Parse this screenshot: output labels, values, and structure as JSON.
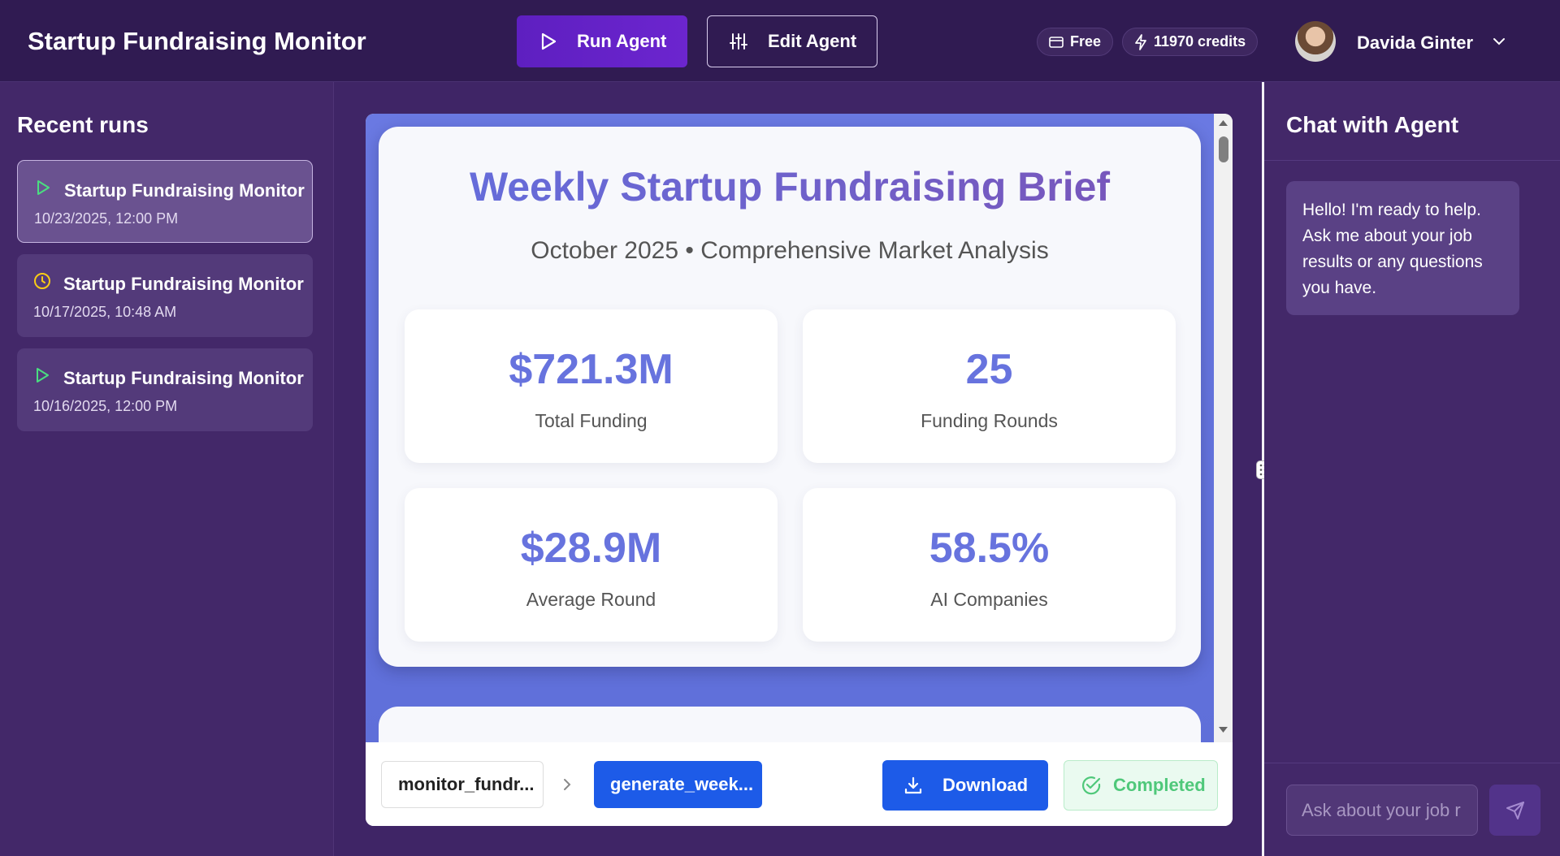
{
  "header": {
    "app_title": "Startup Fundraising Monitor",
    "run_label": "Run Agent",
    "edit_label": "Edit Agent",
    "plan_label": "Free",
    "credits_label": "11970 credits",
    "user_name": "Davida Ginter"
  },
  "sidebar": {
    "title": "Recent runs",
    "runs": [
      {
        "name": "Startup Fundraising Monitor",
        "date": "10/23/2025, 12:00 PM",
        "status_icon": "play-icon",
        "active": true
      },
      {
        "name": "Startup Fundraising Monitor",
        "date": "10/17/2025, 10:48 AM",
        "status_icon": "clock-icon",
        "active": false
      },
      {
        "name": "Startup Fundraising Monitor",
        "date": "10/16/2025, 12:00 PM",
        "status_icon": "play-icon",
        "active": false
      }
    ]
  },
  "report": {
    "title": "Weekly Startup Fundraising Brief",
    "subtitle": "October 2025 • Comprehensive Market Analysis",
    "stats": [
      {
        "value": "$721.3M",
        "label": "Total Funding"
      },
      {
        "value": "25",
        "label": "Funding Rounds"
      },
      {
        "value": "$28.9M",
        "label": "Average Round"
      },
      {
        "value": "58.5%",
        "label": "AI Companies"
      }
    ]
  },
  "footer": {
    "step1_label": "monitor_fundr...",
    "step2_label": "generate_week...",
    "download_label": "Download",
    "status_label": "Completed"
  },
  "chat": {
    "title": "Chat with Agent",
    "message": "Hello! I'm ready to help. Ask me about your job results or any questions you have.",
    "input_placeholder": "Ask about your job r"
  },
  "colors": {
    "accent": "#1d5be8",
    "run_button": "#6c25cf",
    "success": "#4fc87a",
    "stat_value": "#6773de"
  }
}
